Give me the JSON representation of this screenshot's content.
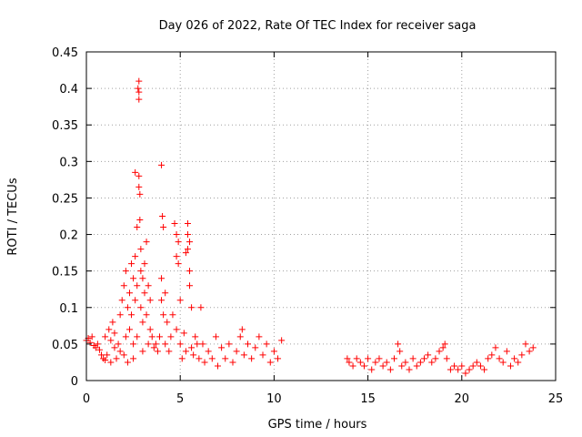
{
  "chart_data": {
    "type": "scatter",
    "title": "Day 026 of 2022, Rate Of TEC Index for receiver saga",
    "xlabel": "GPS time / hours",
    "ylabel": "ROTI / TECUs",
    "xlim": [
      0,
      25
    ],
    "ylim": [
      0,
      0.45
    ],
    "xticks": [
      0,
      5,
      10,
      15,
      20,
      25
    ],
    "xtick_labels": [
      "0",
      "5",
      "10",
      "15",
      "20",
      "25"
    ],
    "yticks": [
      0,
      0.05,
      0.1,
      0.15,
      0.2,
      0.25,
      0.3,
      0.35,
      0.4,
      0.45
    ],
    "ytick_labels": [
      "0",
      "0.05",
      "0.1",
      "0.15",
      "0.2",
      "0.25",
      "0.3",
      "0.35",
      "0.4",
      "0.45"
    ],
    "grid": true,
    "marker": "+",
    "marker_color": "#ff0000",
    "series": [
      {
        "points": [
          [
            0.0,
            0.055
          ],
          [
            0.1,
            0.058
          ],
          [
            0.2,
            0.052
          ],
          [
            0.3,
            0.06
          ],
          [
            0.4,
            0.048
          ],
          [
            0.5,
            0.045
          ],
          [
            0.6,
            0.05
          ],
          [
            0.7,
            0.042
          ],
          [
            0.8,
            0.035
          ],
          [
            0.9,
            0.03
          ],
          [
            1.0,
            0.028
          ],
          [
            1.0,
            0.06
          ],
          [
            1.1,
            0.035
          ],
          [
            1.2,
            0.07
          ],
          [
            1.3,
            0.055
          ],
          [
            1.3,
            0.025
          ],
          [
            1.4,
            0.08
          ],
          [
            1.5,
            0.045
          ],
          [
            1.5,
            0.065
          ],
          [
            1.6,
            0.03
          ],
          [
            1.7,
            0.05
          ],
          [
            1.8,
            0.09
          ],
          [
            1.8,
            0.04
          ],
          [
            1.9,
            0.11
          ],
          [
            2.0,
            0.13
          ],
          [
            2.0,
            0.035
          ],
          [
            2.1,
            0.15
          ],
          [
            2.1,
            0.06
          ],
          [
            2.2,
            0.1
          ],
          [
            2.2,
            0.025
          ],
          [
            2.3,
            0.12
          ],
          [
            2.3,
            0.07
          ],
          [
            2.4,
            0.09
          ],
          [
            2.4,
            0.16
          ],
          [
            2.5,
            0.14
          ],
          [
            2.5,
            0.05
          ],
          [
            2.5,
            0.03
          ],
          [
            2.6,
            0.285
          ],
          [
            2.6,
            0.17
          ],
          [
            2.6,
            0.11
          ],
          [
            2.7,
            0.13
          ],
          [
            2.7,
            0.06
          ],
          [
            2.7,
            0.21
          ],
          [
            2.75,
            0.4
          ],
          [
            2.8,
            0.41
          ],
          [
            2.8,
            0.395
          ],
          [
            2.8,
            0.385
          ],
          [
            2.8,
            0.28
          ],
          [
            2.8,
            0.265
          ],
          [
            2.85,
            0.255
          ],
          [
            2.85,
            0.22
          ],
          [
            2.9,
            0.18
          ],
          [
            2.9,
            0.15
          ],
          [
            2.9,
            0.1
          ],
          [
            3.0,
            0.14
          ],
          [
            3.0,
            0.08
          ],
          [
            3.0,
            0.04
          ],
          [
            3.1,
            0.16
          ],
          [
            3.1,
            0.12
          ],
          [
            3.2,
            0.19
          ],
          [
            3.2,
            0.09
          ],
          [
            3.3,
            0.13
          ],
          [
            3.3,
            0.05
          ],
          [
            3.4,
            0.11
          ],
          [
            3.4,
            0.07
          ],
          [
            3.5,
            0.06
          ],
          [
            3.6,
            0.045
          ],
          [
            3.7,
            0.05
          ],
          [
            3.8,
            0.04
          ],
          [
            3.9,
            0.06
          ],
          [
            4.0,
            0.295
          ],
          [
            4.0,
            0.14
          ],
          [
            4.0,
            0.11
          ],
          [
            4.05,
            0.225
          ],
          [
            4.1,
            0.21
          ],
          [
            4.1,
            0.09
          ],
          [
            4.2,
            0.12
          ],
          [
            4.2,
            0.05
          ],
          [
            4.3,
            0.08
          ],
          [
            4.4,
            0.04
          ],
          [
            4.5,
            0.06
          ],
          [
            4.6,
            0.09
          ],
          [
            4.7,
            0.215
          ],
          [
            4.8,
            0.2
          ],
          [
            4.8,
            0.17
          ],
          [
            4.8,
            0.07
          ],
          [
            4.9,
            0.19
          ],
          [
            4.9,
            0.16
          ],
          [
            5.0,
            0.05
          ],
          [
            5.0,
            0.11
          ],
          [
            5.1,
            0.03
          ],
          [
            5.2,
            0.065
          ],
          [
            5.3,
            0.04
          ],
          [
            5.3,
            0.175
          ],
          [
            5.4,
            0.215
          ],
          [
            5.4,
            0.2
          ],
          [
            5.4,
            0.18
          ],
          [
            5.5,
            0.19
          ],
          [
            5.5,
            0.15
          ],
          [
            5.5,
            0.13
          ],
          [
            5.6,
            0.1
          ],
          [
            5.6,
            0.045
          ],
          [
            5.7,
            0.035
          ],
          [
            5.8,
            0.06
          ],
          [
            5.9,
            0.05
          ],
          [
            6.0,
            0.03
          ],
          [
            6.1,
            0.1
          ],
          [
            6.2,
            0.05
          ],
          [
            6.3,
            0.025
          ],
          [
            6.5,
            0.04
          ],
          [
            6.7,
            0.03
          ],
          [
            6.9,
            0.06
          ],
          [
            7.0,
            0.02
          ],
          [
            7.2,
            0.045
          ],
          [
            7.4,
            0.03
          ],
          [
            7.6,
            0.05
          ],
          [
            7.8,
            0.025
          ],
          [
            8.0,
            0.04
          ],
          [
            8.2,
            0.06
          ],
          [
            8.3,
            0.07
          ],
          [
            8.4,
            0.035
          ],
          [
            8.6,
            0.05
          ],
          [
            8.8,
            0.03
          ],
          [
            9.0,
            0.045
          ],
          [
            9.2,
            0.06
          ],
          [
            9.4,
            0.035
          ],
          [
            9.6,
            0.05
          ],
          [
            9.8,
            0.025
          ],
          [
            10.0,
            0.04
          ],
          [
            10.2,
            0.03
          ],
          [
            10.4,
            0.055
          ],
          [
            13.9,
            0.03
          ],
          [
            14.0,
            0.025
          ],
          [
            14.2,
            0.02
          ],
          [
            14.4,
            0.03
          ],
          [
            14.6,
            0.025
          ],
          [
            14.8,
            0.02
          ],
          [
            15.0,
            0.03
          ],
          [
            15.2,
            0.015
          ],
          [
            15.4,
            0.025
          ],
          [
            15.6,
            0.03
          ],
          [
            15.8,
            0.02
          ],
          [
            16.0,
            0.025
          ],
          [
            16.2,
            0.015
          ],
          [
            16.4,
            0.03
          ],
          [
            16.6,
            0.05
          ],
          [
            16.7,
            0.04
          ],
          [
            16.8,
            0.02
          ],
          [
            17.0,
            0.025
          ],
          [
            17.2,
            0.015
          ],
          [
            17.4,
            0.03
          ],
          [
            17.6,
            0.02
          ],
          [
            17.8,
            0.025
          ],
          [
            18.0,
            0.03
          ],
          [
            18.2,
            0.035
          ],
          [
            18.4,
            0.025
          ],
          [
            18.6,
            0.03
          ],
          [
            18.8,
            0.04
          ],
          [
            19.0,
            0.045
          ],
          [
            19.1,
            0.05
          ],
          [
            19.2,
            0.03
          ],
          [
            19.4,
            0.015
          ],
          [
            19.6,
            0.02
          ],
          [
            19.8,
            0.015
          ],
          [
            20.0,
            0.02
          ],
          [
            20.2,
            0.01
          ],
          [
            20.4,
            0.015
          ],
          [
            20.6,
            0.02
          ],
          [
            20.8,
            0.025
          ],
          [
            21.0,
            0.02
          ],
          [
            21.2,
            0.015
          ],
          [
            21.4,
            0.03
          ],
          [
            21.6,
            0.035
          ],
          [
            21.8,
            0.045
          ],
          [
            22.0,
            0.03
          ],
          [
            22.2,
            0.025
          ],
          [
            22.4,
            0.04
          ],
          [
            22.6,
            0.02
          ],
          [
            22.8,
            0.03
          ],
          [
            23.0,
            0.025
          ],
          [
            23.2,
            0.035
          ],
          [
            23.4,
            0.05
          ],
          [
            23.6,
            0.04
          ],
          [
            23.8,
            0.045
          ]
        ]
      }
    ]
  }
}
